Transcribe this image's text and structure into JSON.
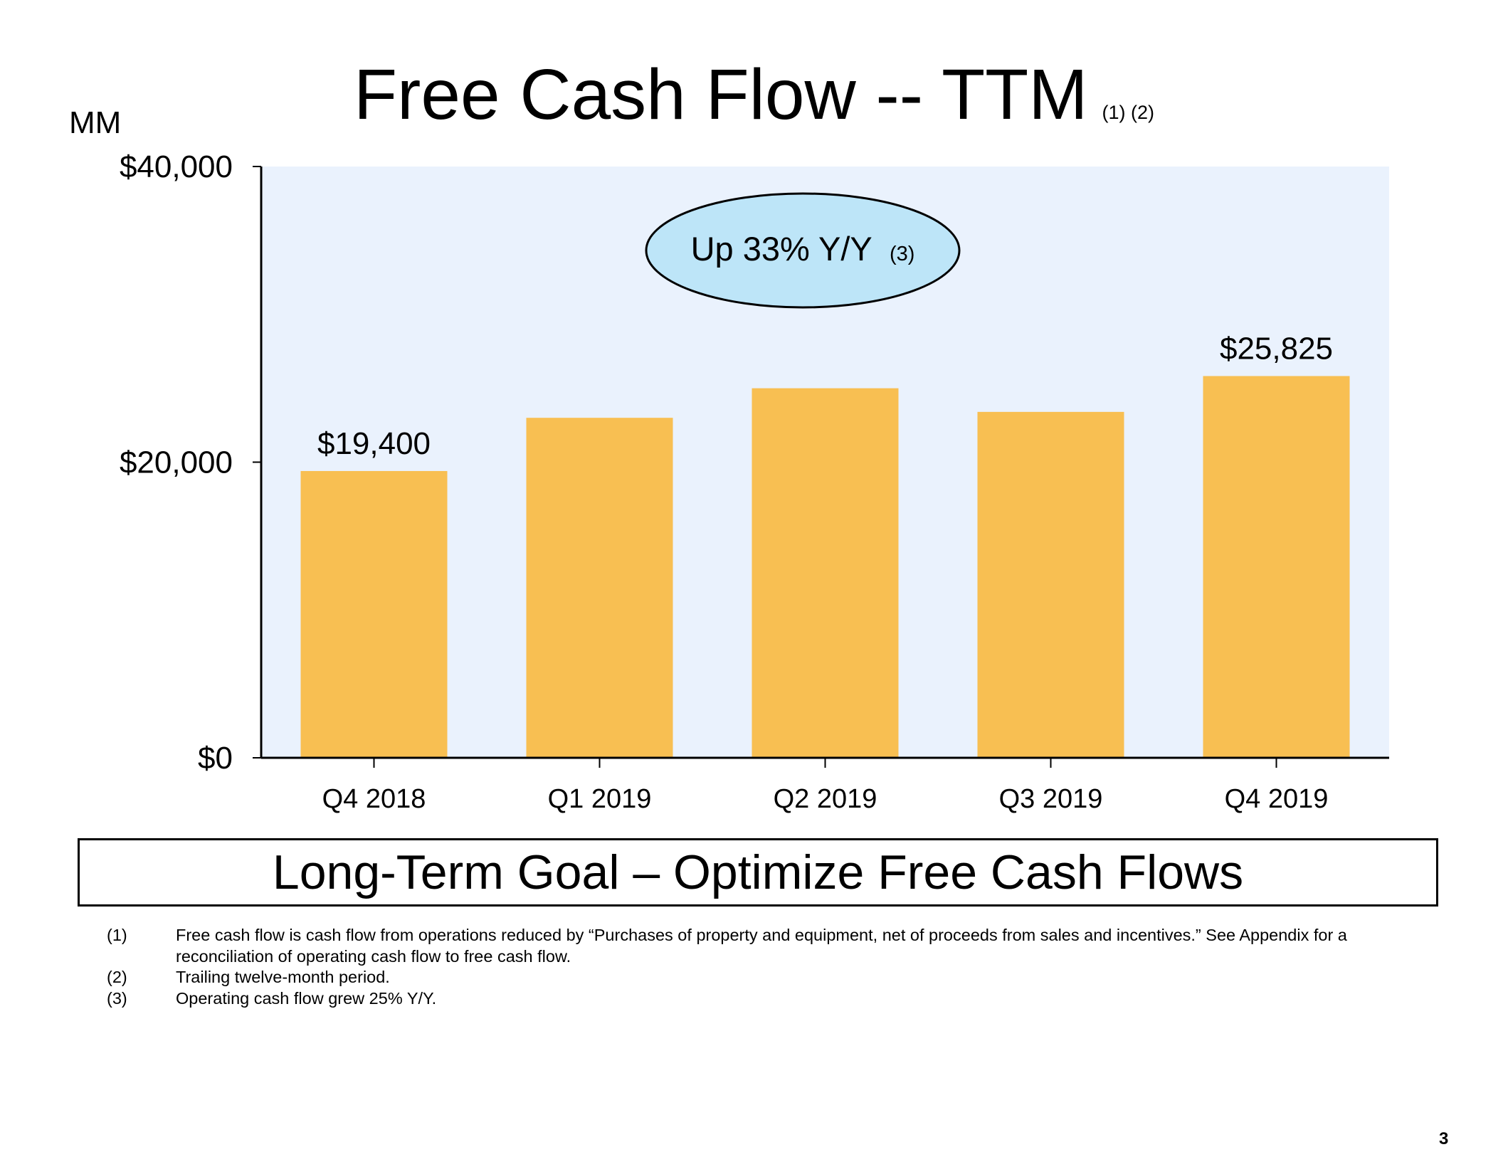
{
  "title": "Free Cash Flow -- TTM",
  "title_note": "(1) (2)",
  "chart_data": {
    "type": "bar",
    "title": "Free Cash Flow -- TTM",
    "unit_label": "MM",
    "categories": [
      "Q4 2018",
      "Q1 2019",
      "Q2 2019",
      "Q3 2019",
      "Q4 2019"
    ],
    "values": [
      19400,
      23000,
      25000,
      23400,
      25825
    ],
    "data_labels": [
      "$19,400",
      "",
      "",
      "",
      "$25,825"
    ],
    "ylim": [
      0,
      40000
    ],
    "yticks": [
      0,
      20000,
      40000
    ],
    "ytick_labels": [
      "$0",
      "$20,000",
      "$40,000"
    ],
    "xlabel": "",
    "ylabel": "MM",
    "grid": false,
    "legend": "none",
    "annotation": {
      "text": "Up 33% Y/Y",
      "note": "(3)"
    },
    "colors": {
      "bar": "#F8BF52",
      "plot_bg": "#EAF2FD",
      "callout_fill": "#BDE5F8"
    }
  },
  "goal_text": "Long-Term Goal – Optimize Free Cash Flows",
  "footnotes": [
    {
      "num": "(1)",
      "text": "Free cash flow is cash flow from operations reduced by “Purchases of property and equipment, net of proceeds from sales and incentives.” See Appendix for a reconciliation of operating cash flow to free cash flow."
    },
    {
      "num": "(2)",
      "text": "Trailing twelve-month period."
    },
    {
      "num": "(3)",
      "text": "Operating cash flow grew 25% Y/Y."
    }
  ],
  "page_number": "3"
}
